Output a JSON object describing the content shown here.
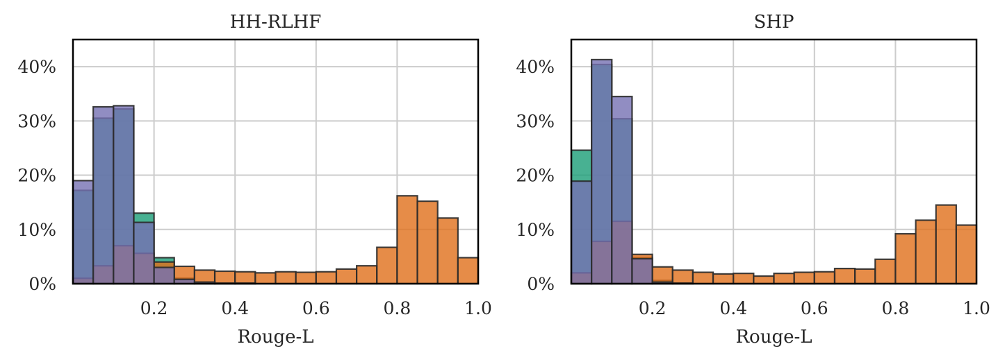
{
  "chart_data": [
    {
      "type": "bar",
      "title": "HH-RLHF",
      "xlabel": "Rouge-L",
      "ylabel": "",
      "xlim": [
        0.0,
        1.0
      ],
      "ylim": [
        0,
        45
      ],
      "xticks": [
        0.2,
        0.4,
        0.6,
        0.8,
        1.0
      ],
      "xtick_labels": [
        "0.2",
        "0.4",
        "0.6",
        "0.8",
        "1.0"
      ],
      "yticks": [
        0,
        10,
        20,
        30,
        40
      ],
      "ytick_labels": [
        "0%",
        "10%",
        "20%",
        "30%",
        "40%"
      ],
      "grid": true,
      "bin_width": 0.05,
      "bin_starts": [
        0.0,
        0.05,
        0.1,
        0.15,
        0.2,
        0.25,
        0.3,
        0.35,
        0.4,
        0.45,
        0.5,
        0.55,
        0.6,
        0.65,
        0.7,
        0.75,
        0.8,
        0.85,
        0.9,
        0.95
      ],
      "series": [
        {
          "color": "#1a9e77",
          "values": [
            17.2,
            30.5,
            32.2,
            13.0,
            4.8,
            1.0,
            0.3,
            0.1,
            0.1,
            0,
            0,
            0,
            0,
            0,
            0,
            0,
            0,
            0,
            0,
            0
          ]
        },
        {
          "color": "#e06f1a",
          "values": [
            1.0,
            3.3,
            7.0,
            5.6,
            4.0,
            3.2,
            2.5,
            2.3,
            2.2,
            2.0,
            2.2,
            2.1,
            2.2,
            2.7,
            3.3,
            6.7,
            16.2,
            15.2,
            12.1,
            4.8
          ]
        },
        {
          "color": "#7570b3",
          "values": [
            19.0,
            32.6,
            32.8,
            11.3,
            3.0,
            0.8,
            0.3,
            0.1,
            0.1,
            0,
            0,
            0,
            0,
            0,
            0,
            0,
            0,
            0,
            0,
            0
          ]
        }
      ]
    },
    {
      "type": "bar",
      "title": "SHP",
      "xlabel": "Rouge-L",
      "ylabel": "",
      "xlim": [
        0.0,
        1.0
      ],
      "ylim": [
        0,
        45
      ],
      "xticks": [
        0.2,
        0.4,
        0.6,
        0.8,
        1.0
      ],
      "xtick_labels": [
        "0.2",
        "0.4",
        "0.6",
        "0.8",
        "1.0"
      ],
      "yticks": [
        0,
        10,
        20,
        30,
        40
      ],
      "ytick_labels": [
        "0%",
        "10%",
        "20%",
        "30%",
        "40%"
      ],
      "grid": true,
      "bin_width": 0.05,
      "bin_starts": [
        0.0,
        0.05,
        0.1,
        0.15,
        0.2,
        0.25,
        0.3,
        0.35,
        0.4,
        0.45,
        0.5,
        0.55,
        0.6,
        0.65,
        0.7,
        0.75,
        0.8,
        0.85,
        0.9,
        0.95
      ],
      "series": [
        {
          "color": "#1a9e77",
          "values": [
            24.6,
            40.4,
            30.4,
            4.8,
            0.6,
            0.1,
            0,
            0,
            0,
            0,
            0,
            0,
            0,
            0,
            0,
            0,
            0,
            0,
            0,
            0
          ]
        },
        {
          "color": "#e06f1a",
          "values": [
            2.0,
            7.8,
            11.5,
            5.4,
            3.1,
            2.5,
            2.1,
            1.8,
            1.9,
            1.4,
            1.9,
            2.1,
            2.2,
            2.8,
            2.7,
            4.5,
            9.2,
            11.7,
            14.5,
            10.8
          ]
        },
        {
          "color": "#7570b3",
          "values": [
            18.9,
            41.3,
            34.5,
            4.6,
            0.3,
            0.1,
            0,
            0,
            0,
            0,
            0,
            0,
            0,
            0,
            0,
            0,
            0,
            0,
            0,
            0
          ]
        }
      ]
    }
  ]
}
